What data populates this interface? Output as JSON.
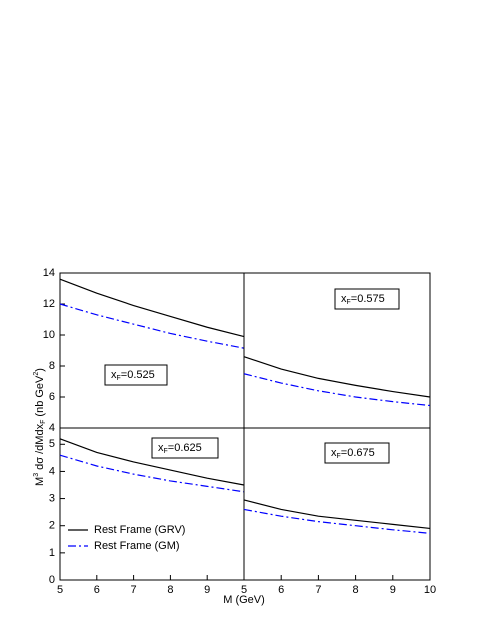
{
  "chart_data": [
    {
      "type": "line",
      "x": [
        5,
        6,
        7,
        8,
        9,
        10
      ],
      "xlim": [
        5,
        10
      ],
      "ylim": [
        4,
        14
      ],
      "yticks": [
        4,
        6,
        8,
        10,
        12,
        14
      ],
      "annotation": [
        "x",
        "F",
        "=0.525"
      ],
      "series": [
        {
          "color": "#000000",
          "dash": "solid",
          "values": [
            13.6,
            12.7,
            11.9,
            11.2,
            10.5,
            9.9
          ]
        },
        {
          "color": "#0000ff",
          "dash": "dashdot",
          "values": [
            12.0,
            11.3,
            10.7,
            10.1,
            9.6,
            9.15
          ]
        }
      ]
    },
    {
      "type": "line",
      "x": [
        5,
        6,
        7,
        8,
        9,
        10
      ],
      "xlim": [
        5,
        10
      ],
      "ylim": [
        4,
        14
      ],
      "annotation": [
        "x",
        "F",
        "=0.575"
      ],
      "series": [
        {
          "color": "#000000",
          "dash": "solid",
          "values": [
            8.6,
            7.8,
            7.2,
            6.75,
            6.35,
            6.0
          ]
        },
        {
          "color": "#0000ff",
          "dash": "dashdot",
          "values": [
            7.5,
            6.9,
            6.4,
            6.0,
            5.7,
            5.45
          ]
        }
      ]
    },
    {
      "type": "line",
      "x": [
        5,
        6,
        7,
        8,
        9,
        10
      ],
      "xlim": [
        5,
        10
      ],
      "ylim": [
        0,
        5.6
      ],
      "xticks": [
        5,
        6,
        7,
        8,
        9
      ],
      "yticks": [
        0,
        1,
        2,
        3,
        4,
        5
      ],
      "annotation": [
        "x",
        "F",
        "=0.625"
      ],
      "legend": true,
      "series": [
        {
          "name": "Rest Frame (GRV)",
          "color": "#000000",
          "dash": "solid",
          "values": [
            5.2,
            4.7,
            4.35,
            4.05,
            3.75,
            3.5
          ]
        },
        {
          "name": "Rest Frame (GM)",
          "color": "#0000ff",
          "dash": "dashdot",
          "values": [
            4.6,
            4.2,
            3.9,
            3.65,
            3.45,
            3.25
          ]
        }
      ]
    },
    {
      "type": "line",
      "x": [
        5,
        6,
        7,
        8,
        9,
        10
      ],
      "xlim": [
        5,
        10
      ],
      "ylim": [
        0,
        5.6
      ],
      "xticks": [
        5,
        6,
        7,
        8,
        9,
        10
      ],
      "annotation": [
        "x",
        "F",
        "=0.675"
      ],
      "series": [
        {
          "color": "#000000",
          "dash": "solid",
          "values": [
            2.95,
            2.6,
            2.35,
            2.2,
            2.05,
            1.9
          ]
        },
        {
          "color": "#0000ff",
          "dash": "dashdot",
          "values": [
            2.6,
            2.35,
            2.15,
            2.0,
            1.85,
            1.72
          ]
        }
      ]
    }
  ],
  "x_label": "M (GeV)",
  "y_label": [
    "M",
    "3",
    " dσ /dMdx",
    "F",
    " (nb GeV",
    "2",
    ")"
  ]
}
